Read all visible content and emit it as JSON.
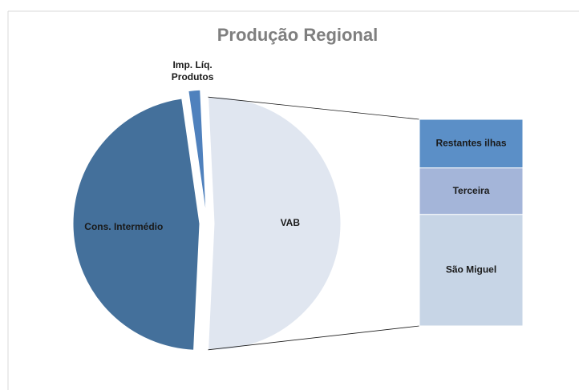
{
  "chart_data": {
    "type": "bar-of-pie",
    "title": "Produção Regional",
    "categories": [
      "Cons. Intermédio",
      "Imp. Líq. Produtos",
      "VAB"
    ],
    "values": [
      47,
      1.5,
      51.5
    ],
    "colors": [
      "#44709b",
      "#4f81bd",
      "#e0e6f0"
    ],
    "breakdown": {
      "categories": [
        "São Miguel",
        "Terceira",
        "Restantes ilhas"
      ],
      "values": [
        54,
        22.5,
        23.5
      ],
      "colors": [
        "#c7d5e6",
        "#a4b5d9",
        "#5b8fc7"
      ]
    }
  }
}
